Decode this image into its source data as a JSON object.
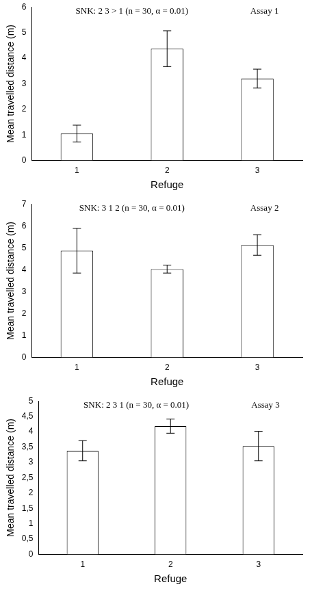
{
  "chart_data": [
    {
      "type": "bar",
      "categories": [
        "1",
        "2",
        "3"
      ],
      "values": [
        1.05,
        4.37,
        3.2
      ],
      "errors": [
        0.33,
        0.7,
        0.37
      ],
      "x_label": "Refuge",
      "y_label": "Mean travelled distance (m)",
      "annotations": [
        "SNK: 2 3 > 1 (n = 30, α = 0.01)",
        "Assay 1"
      ],
      "color": "#ffffff",
      "ylim": [
        0,
        6
      ],
      "yticks": [
        0,
        1,
        2,
        3,
        4,
        5,
        6
      ],
      "grid": false
    },
    {
      "type": "bar",
      "categories": [
        "1",
        "2",
        "3"
      ],
      "values": [
        4.87,
        4.03,
        5.13
      ],
      "errors": [
        1.02,
        0.18,
        0.47
      ],
      "x_label": "Refuge",
      "y_label": "Mean travelled distance (m)",
      "annotations": [
        "SNK: 3 1 2 (n = 30, α = 0.01)",
        "Assay 2"
      ],
      "color": "#ffffff",
      "ylim": [
        0,
        7
      ],
      "yticks": [
        0,
        1,
        2,
        3,
        4,
        5,
        6,
        7
      ],
      "grid": false
    },
    {
      "type": "bar",
      "categories": [
        "1",
        "2",
        "3"
      ],
      "values": [
        3.38,
        4.18,
        3.53
      ],
      "errors": [
        0.33,
        0.23,
        0.48
      ],
      "x_label": "Refuge",
      "y_label": "Mean travelled distance (m)",
      "annotations": [
        "SNK: 2 3 1 (n = 30, α = 0.01)",
        "Assay 3"
      ],
      "color": "#ffffff",
      "ylim": [
        0,
        5
      ],
      "yticks": [
        0,
        {
          "value": 0.5,
          "label": "0,5"
        },
        1,
        {
          "value": 1.5,
          "label": "1,5"
        },
        2,
        {
          "value": 2.5,
          "label": "2,5"
        },
        3,
        {
          "value": 3.5,
          "label": "3,5"
        },
        4,
        {
          "value": 4.5,
          "label": "4,5"
        },
        5
      ],
      "grid": false
    }
  ]
}
